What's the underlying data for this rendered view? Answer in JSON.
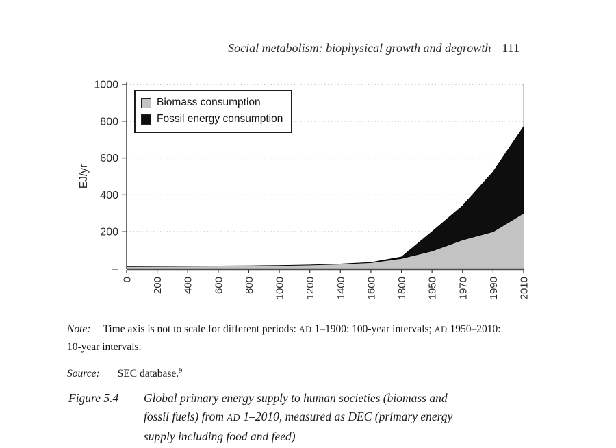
{
  "header": {
    "running_title": "Social metabolism: biophysical growth and degrowth",
    "page_number": "111"
  },
  "chart_data": {
    "type": "area",
    "stacked": true,
    "title": "",
    "xlabel": "",
    "ylabel": "EJ/yr",
    "ylim": [
      0,
      1000
    ],
    "yticks": [
      200,
      400,
      600,
      800,
      1000
    ],
    "y_zero_label": "–",
    "grid": "dotted-horizontal",
    "legend_position": "top-left",
    "categories": [
      "0",
      "200",
      "400",
      "600",
      "800",
      "1000",
      "1200",
      "1400",
      "1600",
      "1800",
      "1950",
      "1970",
      "1990",
      "2010"
    ],
    "series": [
      {
        "name": "Biomass consumption",
        "color": "#c3c3c3",
        "values": [
          10,
          11,
          12,
          13,
          14,
          16,
          19,
          24,
          32,
          55,
          95,
          155,
          200,
          300
        ]
      },
      {
        "name": "Fossil energy consumption",
        "color": "#0e0e0e",
        "values": [
          0,
          0,
          0,
          0,
          0,
          0,
          0,
          0,
          1,
          8,
          105,
          185,
          325,
          470
        ]
      }
    ]
  },
  "note": {
    "label": "Note:",
    "seg1": "Time axis is not to scale for different periods: ",
    "ad1": "AD",
    "seg2": " 1–1900: 100-year intervals; ",
    "ad2": "AD",
    "seg3": " 1950–2010: 10-year intervals."
  },
  "source": {
    "label": "Source:",
    "text": "SEC database.",
    "footnote": "9"
  },
  "caption": {
    "label": "Figure 5.4",
    "seg1": "Global primary energy supply to human societies (biomass and fossil fuels) from ",
    "ad": "AD",
    "seg2": " 1–2010, measured as DEC (primary energy supply including food and feed)"
  }
}
